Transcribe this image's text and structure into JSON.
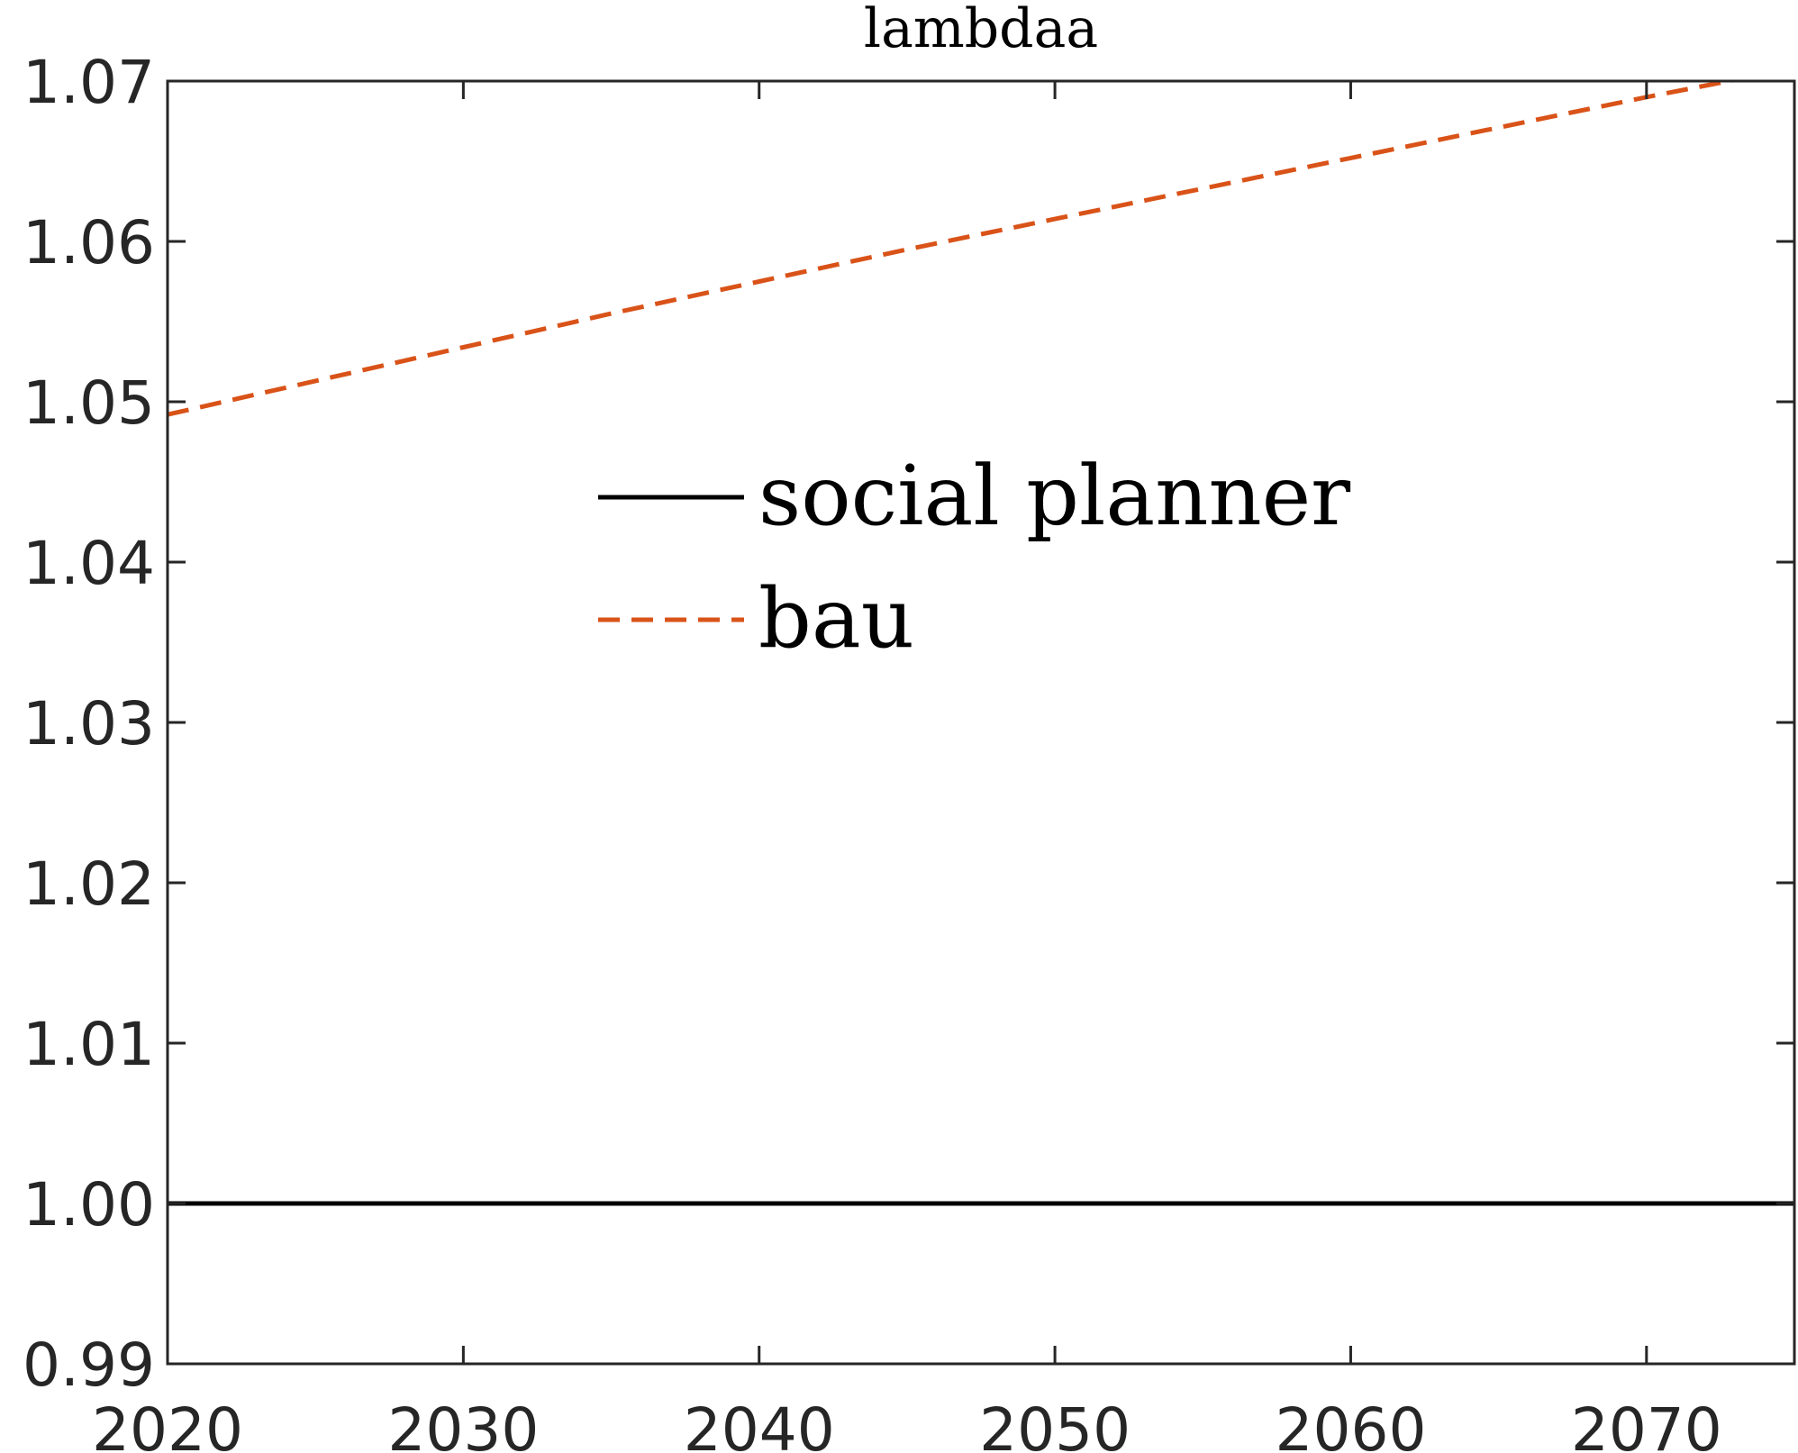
{
  "chart_data": {
    "type": "line",
    "title": "lambdaa",
    "xlabel": "",
    "ylabel": "",
    "xlim": [
      2020,
      2075
    ],
    "ylim": [
      0.99,
      1.07
    ],
    "xticks": [
      2020,
      2030,
      2040,
      2050,
      2060,
      2070
    ],
    "yticks": [
      0.99,
      1.0,
      1.01,
      1.02,
      1.03,
      1.04,
      1.05,
      1.06,
      1.07
    ],
    "xtick_labels": [
      "2020",
      "2030",
      "2040",
      "2050",
      "2060",
      "2070"
    ],
    "ytick_labels": [
      "0.99",
      "1.00",
      "1.01",
      "1.02",
      "1.03",
      "1.04",
      "1.05",
      "1.06",
      "1.07"
    ],
    "grid": false,
    "legend_position": "center",
    "series": [
      {
        "name": "social planner",
        "color": "#000000",
        "line_style": "solid",
        "x": [
          2020,
          2075
        ],
        "y": [
          1.0,
          1.0
        ]
      },
      {
        "name": "bau",
        "color": "#D95319",
        "line_style": "dashed",
        "x": [
          2020,
          2025,
          2030,
          2035,
          2040,
          2045,
          2050,
          2055,
          2060,
          2065,
          2070,
          2075
        ],
        "y": [
          1.0492,
          1.0513,
          1.0534,
          1.0555,
          1.0575,
          1.0595,
          1.0614,
          1.0633,
          1.0652,
          1.0671,
          1.069,
          1.0708
        ]
      }
    ]
  }
}
